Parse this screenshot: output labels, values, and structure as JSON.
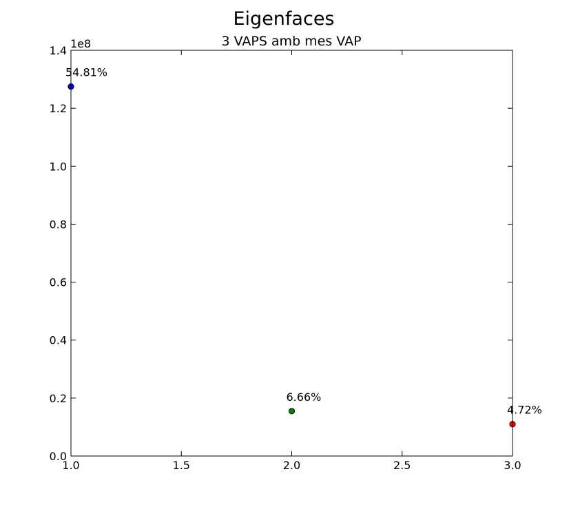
{
  "chart_data": {
    "type": "scatter",
    "title": "Eigenfaces",
    "subtitle": "3 VAPS amb mes VAP",
    "xlabel": "",
    "ylabel": "",
    "y_offset_label": "1e8",
    "y_scale_factor": 100000000,
    "xlim": [
      1.0,
      3.0
    ],
    "ylim": [
      0.0,
      1.4
    ],
    "x_ticks": [
      1.0,
      1.5,
      2.0,
      2.5,
      3.0
    ],
    "x_tick_labels": [
      "1.0",
      "1.5",
      "2.0",
      "2.5",
      "3.0"
    ],
    "y_ticks": [
      0.0,
      0.2,
      0.4,
      0.6,
      0.8,
      1.0,
      1.2,
      1.4
    ],
    "y_tick_labels": [
      "0.0",
      "0.2",
      "0.4",
      "0.6",
      "0.8",
      "1.0",
      "1.2",
      "1.4"
    ],
    "grid": false,
    "legend": "none",
    "points": [
      {
        "x": 1,
        "y": 1.275,
        "label": "54.81%",
        "color": "#0000ff"
      },
      {
        "x": 2,
        "y": 0.155,
        "label": "6.66%",
        "color": "#008000"
      },
      {
        "x": 3,
        "y": 0.11,
        "label": "4.72%",
        "color": "#ff0000"
      }
    ]
  }
}
